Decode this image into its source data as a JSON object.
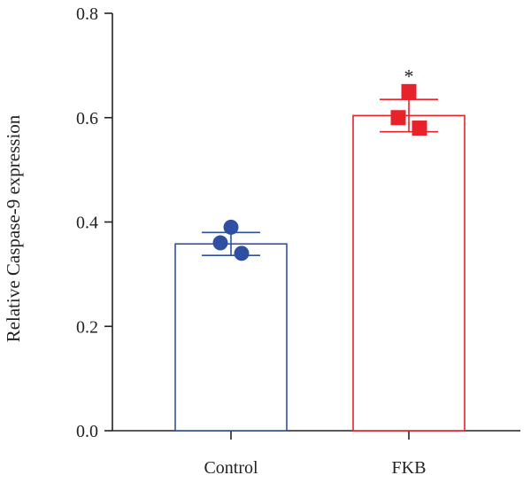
{
  "chart_data": {
    "type": "bar",
    "title": "",
    "xlabel": "",
    "ylabel": "Relative Caspase-9 expression",
    "ylim": [
      0,
      0.8
    ],
    "yticks": [
      "0.0",
      "0.2",
      "0.4",
      "0.6",
      "0.8"
    ],
    "categories": [
      "Control",
      "FKB"
    ],
    "values": [
      0.358,
      0.604
    ],
    "error": [
      0.022,
      0.031
    ],
    "points": [
      [
        0.39,
        0.36,
        0.34
      ],
      [
        0.65,
        0.6,
        0.58
      ]
    ],
    "markers": [
      "circle",
      "square"
    ],
    "colors": [
      "#2f4fa3",
      "#e8222a"
    ],
    "annotations": [
      "",
      "*"
    ],
    "grid": false,
    "legend": "none"
  }
}
